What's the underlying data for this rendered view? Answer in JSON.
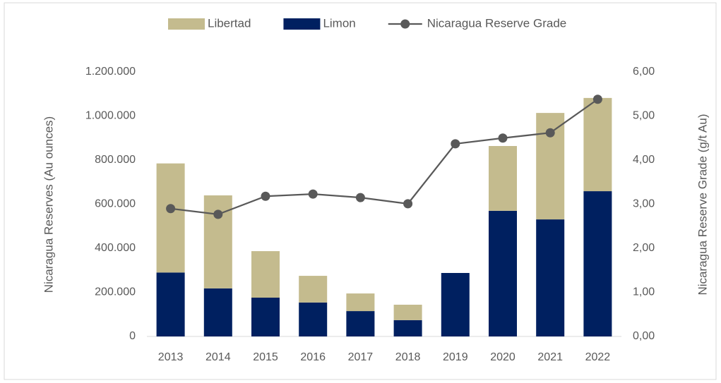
{
  "chart_data": {
    "type": "bar",
    "stacked": true,
    "categories": [
      "2013",
      "2014",
      "2015",
      "2016",
      "2017",
      "2018",
      "2019",
      "2020",
      "2021",
      "2022"
    ],
    "series": [
      {
        "name": "Libertad",
        "color": "#c4bb8e",
        "values": [
          495000,
          422000,
          211000,
          121000,
          80000,
          70000,
          0,
          294000,
          483000,
          423000
        ]
      },
      {
        "name": "Limon",
        "color": "#002060",
        "values": [
          290000,
          218000,
          176000,
          154000,
          115000,
          74000,
          288000,
          570000,
          531000,
          659000
        ]
      },
      {
        "name": "Nicaragua Reserve Grade",
        "color": "#595959",
        "type": "line",
        "axis": "y2",
        "values": [
          2.9,
          2.77,
          3.18,
          3.23,
          3.15,
          3.01,
          4.37,
          4.5,
          4.62,
          5.38
        ]
      }
    ],
    "ylabel": "Nicaragua Reserves (Au ounces)",
    "y2label": "Nicaragua Reserve Grade (g/t Au)",
    "ylim": [
      0,
      1200000
    ],
    "yticks": [
      0,
      {
        "value": 200000,
        "label": "200.000"
      },
      {
        "value": 400000,
        "label": "400.000"
      },
      {
        "value": 600000,
        "label": "600.000"
      },
      {
        "value": 800000,
        "label": "800.000"
      },
      {
        "value": 1000000,
        "label": "1.000.000"
      },
      {
        "value": 1200000,
        "label": "1.200.000"
      }
    ],
    "y2lim": [
      0,
      6
    ],
    "y2ticks": [
      {
        "value": 0,
        "label": "0,00"
      },
      {
        "value": 1,
        "label": "1,00"
      },
      {
        "value": 2,
        "label": "2,00"
      },
      {
        "value": 3,
        "label": "3,00"
      },
      {
        "value": 4,
        "label": "4,00"
      },
      {
        "value": 5,
        "label": "5,00"
      },
      {
        "value": 6,
        "label": "6,00"
      }
    ],
    "grid": false,
    "legend": "top"
  }
}
